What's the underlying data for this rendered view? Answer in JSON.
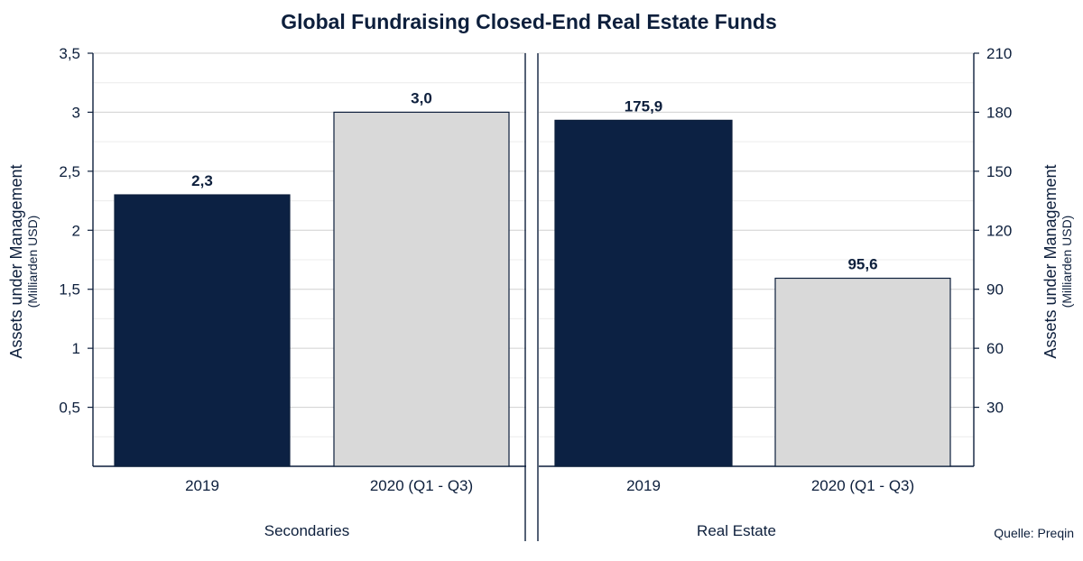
{
  "title": "Global Fundraising Closed-End Real Estate Funds",
  "source": "Quelle:  Preqin",
  "colors": {
    "text": "#0d1f3c",
    "axis": "#0d1f3c",
    "grid": "#d9d9d9",
    "bar_2019": "#0c2143",
    "bar_2020": "#d9d9d9",
    "bar_stroke": "#0d1f3c"
  },
  "chart_data": [
    {
      "type": "bar",
      "group": "Secondaries",
      "categories": [
        "2019",
        "2020 (Q1 - Q3)"
      ],
      "values": [
        2.3,
        3.0
      ],
      "value_labels": [
        "2,3",
        "3,0"
      ],
      "ylabel": "Assets under Management",
      "ylabel_sub": "(Milliarden USD)",
      "ylim": [
        0,
        3.5
      ],
      "yticks": [
        0.5,
        1,
        1.5,
        2,
        2.5,
        3,
        3.5
      ],
      "ytick_labels": [
        "0,5",
        "1",
        "1,5",
        "2",
        "2,5",
        "3",
        "3,5"
      ],
      "y_axis_side": "left",
      "grid": true
    },
    {
      "type": "bar",
      "group": "Real Estate",
      "categories": [
        "2019",
        "2020 (Q1 - Q3)"
      ],
      "values": [
        175.9,
        95.6
      ],
      "value_labels": [
        "175,9",
        "95,6"
      ],
      "ylabel": "Assets under Management",
      "ylabel_sub": "(Milliarden USD)",
      "ylim": [
        0,
        210
      ],
      "yticks": [
        30,
        60,
        90,
        120,
        150,
        180,
        210
      ],
      "ytick_labels": [
        "30",
        "60",
        "90",
        "120",
        "150",
        "180",
        "210"
      ],
      "y_axis_side": "right",
      "grid": true
    }
  ]
}
